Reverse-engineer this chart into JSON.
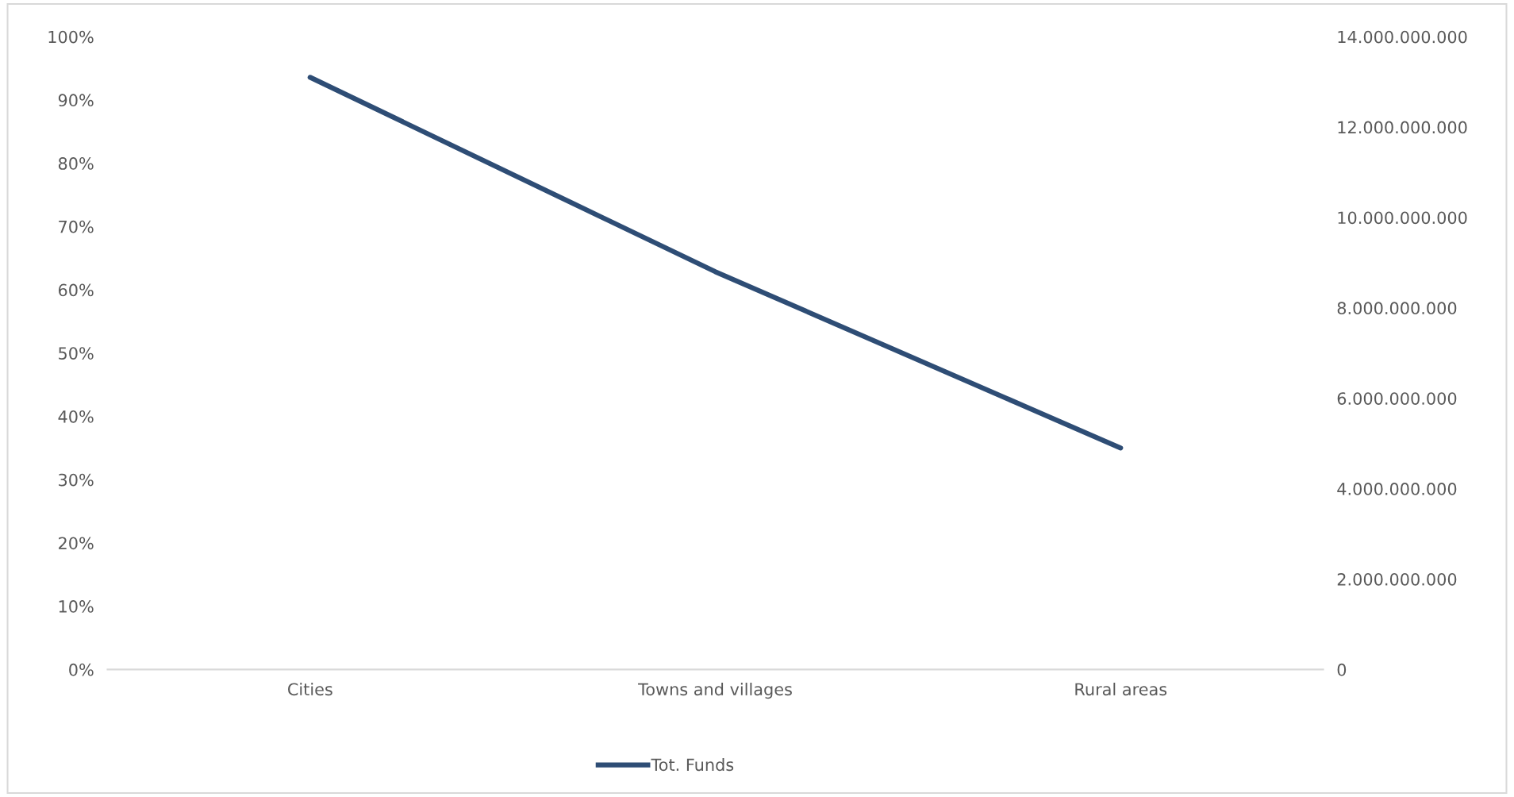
{
  "chart_data": {
    "type": "line",
    "categories": [
      "Cities",
      "Towns and villages",
      "Rural areas"
    ],
    "series": [
      {
        "name": "Tot. Funds",
        "color": "#2e4d75",
        "axis": "y2",
        "values": [
          13100000000,
          8800000000,
          4900000000
        ]
      }
    ],
    "ylim": [
      0,
      1
    ],
    "yticks": [
      {
        "value": 0,
        "label": "0%"
      },
      {
        "value": 0.1,
        "label": "10%"
      },
      {
        "value": 0.2,
        "label": "20%"
      },
      {
        "value": 0.3,
        "label": "30%"
      },
      {
        "value": 0.4,
        "label": "40%"
      },
      {
        "value": 0.5,
        "label": "50%"
      },
      {
        "value": 0.6,
        "label": "60%"
      },
      {
        "value": 0.7,
        "label": "70%"
      },
      {
        "value": 0.8,
        "label": "80%"
      },
      {
        "value": 0.9,
        "label": "90%"
      },
      {
        "value": 1,
        "label": "100%"
      }
    ],
    "y2lim": [
      0,
      14000000000
    ],
    "y2ticks": [
      0,
      {
        "value": 2000000000,
        "label": "2.000.000.000"
      },
      {
        "value": 4000000000,
        "label": "4.000.000.000"
      },
      {
        "value": 6000000000,
        "label": "6.000.000.000"
      },
      {
        "value": 8000000000,
        "label": "8.000.000.000"
      },
      {
        "value": 10000000000,
        "label": "10.000.000.000"
      },
      {
        "value": 12000000000,
        "label": "12.000.000.000"
      },
      {
        "value": 14000000000,
        "label": "14.000.000.000"
      }
    ],
    "grid": false,
    "legend": "bottom",
    "marker": "none",
    "line_style": "solid"
  }
}
